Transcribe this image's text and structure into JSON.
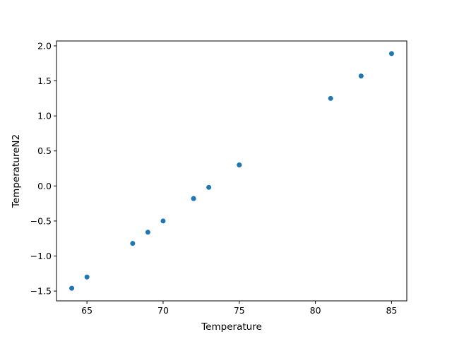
{
  "chart_data": {
    "type": "scatter",
    "title": "",
    "xlabel": "Temperature",
    "ylabel": "TemperatureN2",
    "xlim": [
      63,
      86
    ],
    "ylim": [
      -1.64,
      2.07
    ],
    "xticks": [
      65,
      70,
      75,
      80,
      85
    ],
    "xtick_labels": [
      "65",
      "70",
      "75",
      "80",
      "85"
    ],
    "yticks": [
      -1.5,
      -1.0,
      -0.5,
      0.0,
      0.5,
      1.0,
      1.5,
      2.0
    ],
    "ytick_labels": [
      "−1.5",
      "−1.0",
      "−0.5",
      "0.0",
      "0.5",
      "1.0",
      "1.5",
      "2.0"
    ],
    "marker_color": "#1f77b4",
    "series": [
      {
        "name": "TemperatureN2",
        "x": [
          64,
          65,
          68,
          69,
          70,
          72,
          72,
          73,
          75,
          75,
          81,
          83,
          85
        ],
        "y": [
          -1.46,
          -1.3,
          -0.82,
          -0.66,
          -0.5,
          -0.18,
          -0.18,
          -0.02,
          0.3,
          0.3,
          1.25,
          1.57,
          1.89
        ]
      }
    ]
  }
}
